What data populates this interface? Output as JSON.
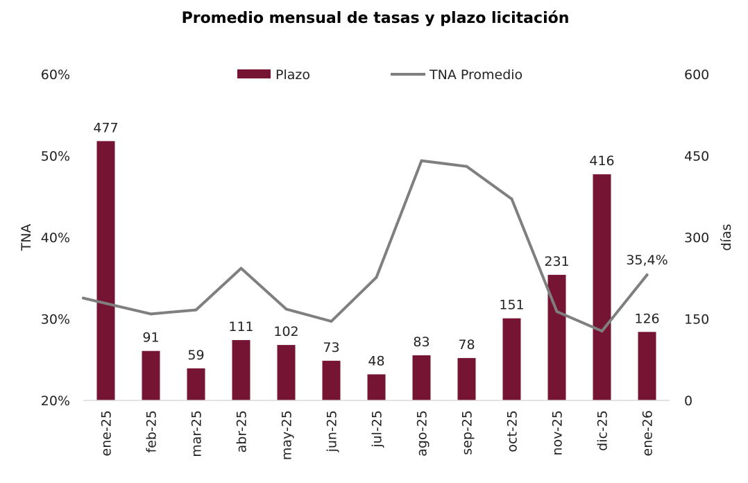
{
  "chart_data": {
    "type": "bar+line",
    "title": "Promedio mensual de tasas y plazo licitación",
    "categories": [
      "ene-25",
      "feb-25",
      "mar-25",
      "abr-25",
      "may-25",
      "jun-25",
      "jul-25",
      "ago-25",
      "sep-25",
      "oct-25",
      "nov-25",
      "dic-25",
      "ene-26"
    ],
    "series": [
      {
        "name": "Plazo",
        "type": "bar",
        "axis": "right",
        "color": "#761434",
        "values": [
          477,
          91,
          59,
          111,
          102,
          73,
          48,
          83,
          78,
          151,
          231,
          416,
          126
        ],
        "labels": [
          "477",
          "91",
          "59",
          "111",
          "102",
          "73",
          "48",
          "83",
          "78",
          "151",
          "231",
          "416",
          "126"
        ]
      },
      {
        "name": "TNA Promedio",
        "type": "line",
        "axis": "left",
        "color": "#7f7f7f",
        "values": [
          31.9,
          30.6,
          31.1,
          36.2,
          31.2,
          29.7,
          35.1,
          49.4,
          48.7,
          44.7,
          30.9,
          28.5,
          35.4
        ],
        "last_label": "35,4%"
      }
    ],
    "left_axis": {
      "label": "TNA",
      "ylim": [
        20,
        60
      ],
      "ticks": [
        20,
        30,
        40,
        50,
        60
      ],
      "tick_labels": [
        "20%",
        "30%",
        "40%",
        "50%",
        "60%"
      ]
    },
    "right_axis": {
      "label": "días",
      "ylim": [
        0,
        600
      ],
      "ticks": [
        0,
        150,
        300,
        450,
        600
      ],
      "tick_labels": [
        "0",
        "150",
        "300",
        "450",
        "600"
      ]
    },
    "legend": {
      "position": "top-center",
      "items": [
        "Plazo",
        "TNA Promedio"
      ]
    },
    "grid": false
  }
}
